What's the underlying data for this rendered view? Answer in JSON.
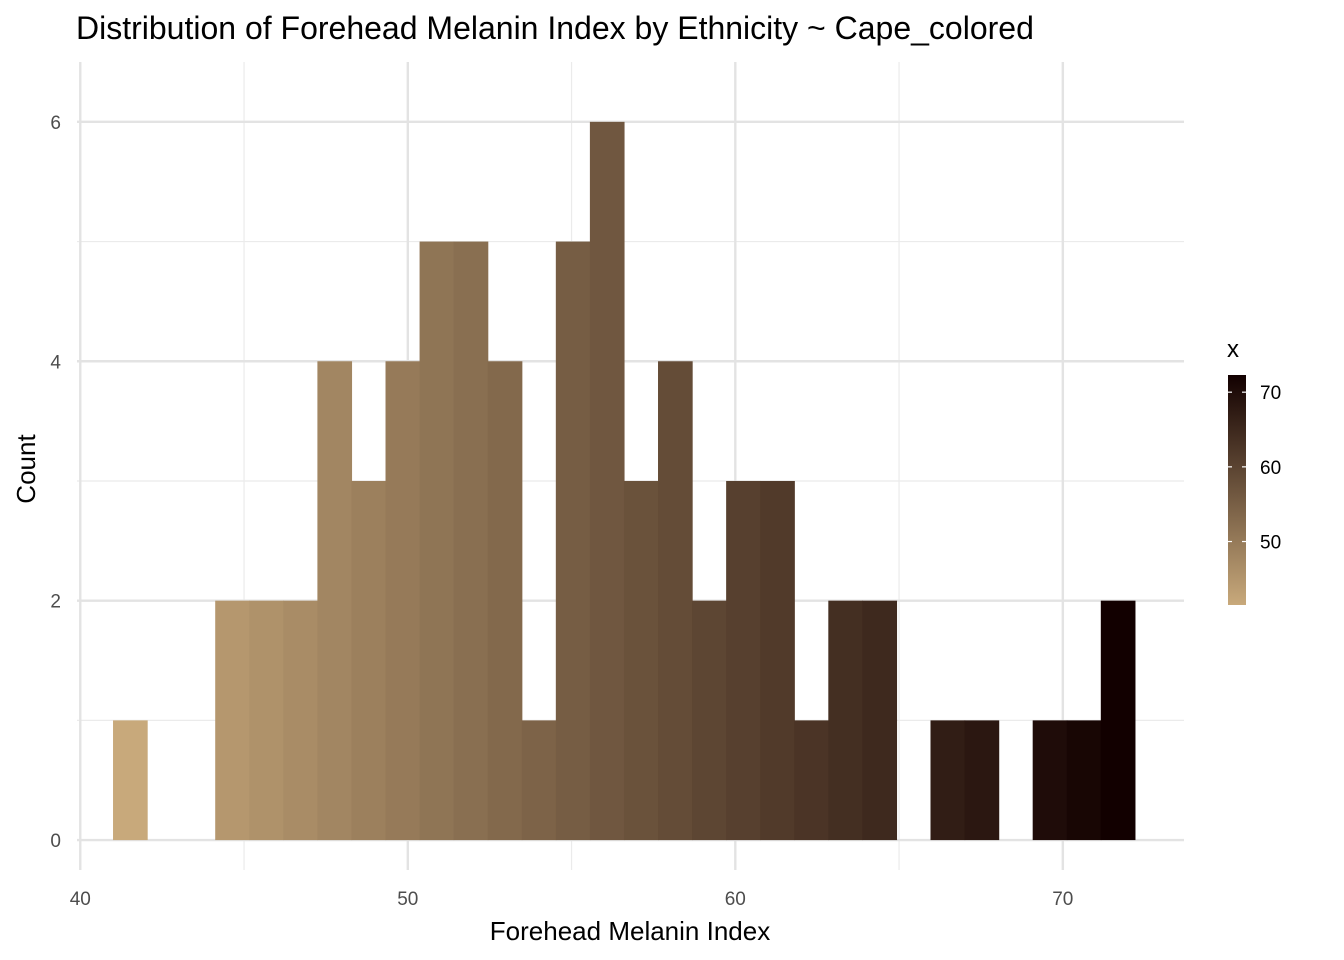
{
  "chart_data": {
    "type": "bar",
    "title": "Distribution of Forehead Melanin Index by Ethnicity ~ Cape_colored",
    "xlabel": "Forehead Melanin Index",
    "ylabel": "Count",
    "xlim": [
      39.9,
      73.7
    ],
    "ylim": [
      -0.25,
      6.5
    ],
    "x_ticks": [
      40,
      50,
      60,
      70
    ],
    "y_ticks": [
      0,
      2,
      4,
      6
    ],
    "bin_width": 1.04,
    "bins": [
      {
        "start": 41.0,
        "end": 42.04,
        "count": 1
      },
      {
        "start": 44.12,
        "end": 45.16,
        "count": 2
      },
      {
        "start": 45.16,
        "end": 46.2,
        "count": 2
      },
      {
        "start": 46.2,
        "end": 47.24,
        "count": 2
      },
      {
        "start": 47.24,
        "end": 48.28,
        "count": 4
      },
      {
        "start": 48.28,
        "end": 49.32,
        "count": 3
      },
      {
        "start": 49.32,
        "end": 50.36,
        "count": 4
      },
      {
        "start": 50.36,
        "end": 51.4,
        "count": 5
      },
      {
        "start": 51.4,
        "end": 52.44,
        "count": 5
      },
      {
        "start": 52.44,
        "end": 53.48,
        "count": 4
      },
      {
        "start": 53.48,
        "end": 54.52,
        "count": 1
      },
      {
        "start": 54.52,
        "end": 55.56,
        "count": 5
      },
      {
        "start": 55.56,
        "end": 56.6,
        "count": 6
      },
      {
        "start": 56.6,
        "end": 57.64,
        "count": 3
      },
      {
        "start": 57.64,
        "end": 58.68,
        "count": 4
      },
      {
        "start": 58.68,
        "end": 59.72,
        "count": 2
      },
      {
        "start": 59.72,
        "end": 60.76,
        "count": 3
      },
      {
        "start": 60.76,
        "end": 61.8,
        "count": 3
      },
      {
        "start": 61.8,
        "end": 62.84,
        "count": 1
      },
      {
        "start": 62.84,
        "end": 63.88,
        "count": 2
      },
      {
        "start": 63.88,
        "end": 64.92,
        "count": 2
      },
      {
        "start": 65.96,
        "end": 67.0,
        "count": 1
      },
      {
        "start": 67.0,
        "end": 68.04,
        "count": 1
      },
      {
        "start": 69.08,
        "end": 70.12,
        "count": 1
      },
      {
        "start": 70.12,
        "end": 71.16,
        "count": 1
      },
      {
        "start": 71.16,
        "end": 72.2,
        "count": 2
      }
    ],
    "grid": true,
    "fill_gradient": {
      "low_color": "#c8a97b",
      "high_color": "#120000",
      "low_value": 41.5,
      "high_value": 71.7
    },
    "legend": {
      "title": "x",
      "placement": "right",
      "ticks": [
        50,
        60,
        70
      ],
      "range": [
        41.5,
        72.3
      ]
    }
  }
}
